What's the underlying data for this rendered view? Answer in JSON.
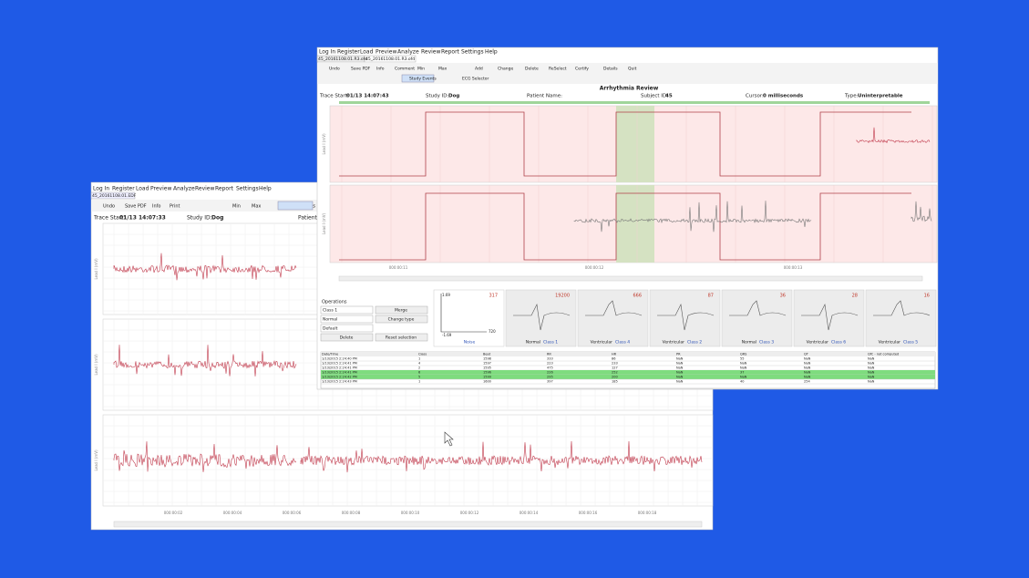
{
  "back_window": {
    "menu": [
      "Log In",
      "Register",
      "Load",
      "Preview",
      "Analyze",
      "Review",
      "Report",
      "Settings",
      "Help"
    ],
    "tab": "45_20161108.01.EDF",
    "toolbar": [
      "Undo",
      "Save PDF",
      "Info",
      "Print",
      "Min",
      "Max",
      "Study Events"
    ],
    "trace_start_label": "Trace Start:",
    "trace_start": "01/13 14:07:33",
    "study_id_label": "Study ID:",
    "study_id": "Dog",
    "patient_label": "Patient N",
    "axis_label": "Lead I (mV)",
    "time_ticks": [
      "000:00:02",
      "000:00:04",
      "000:00:06",
      "000:00:08",
      "000:00:10",
      "000:00:12",
      "000:00:14",
      "000:00:16",
      "000:00:18"
    ]
  },
  "front_window": {
    "menu": [
      "Log In",
      "Register",
      "Load",
      "Preview",
      "Analyze",
      "Review",
      "Report",
      "Settings",
      "Help"
    ],
    "tabs": [
      "45_20161108.01.R3.ofd",
      "45_20161108.01.R3.ofd"
    ],
    "toolbar": [
      "Undo",
      "Save PDF",
      "Info",
      "Comment",
      "Min",
      "Max",
      "Add",
      "Change",
      "Delete",
      "ReSelect",
      "Certify",
      "Details",
      "Quit"
    ],
    "toolbar2": [
      "Study Events",
      "ECG Selector"
    ],
    "title": "Arrhythmia Review",
    "info": [
      {
        "label": "Trace Start:",
        "value": "01/13 14:07:43"
      },
      {
        "label": "Study ID:",
        "value": "Dog"
      },
      {
        "label": "Patient Name:",
        "value": ""
      },
      {
        "label": "Subject ID:",
        "value": "45"
      },
      {
        "label": "Cursor:",
        "value": "0 milliseconds"
      },
      {
        "label": "Type:",
        "value": "Uninterpretable"
      }
    ],
    "axis_label": "Lead I (mV)",
    "time_ticks": [
      "000:00:11",
      "000:00:12",
      "000:00:13"
    ],
    "operations": {
      "title": "Operations",
      "selects": [
        "Class 1",
        "Normal",
        "Default"
      ],
      "buttons": [
        "Merge",
        "Change type",
        "Delete",
        "Reset selection"
      ]
    },
    "noise_axis": [
      "1.69",
      "-1.69",
      "720"
    ],
    "thumbnails": [
      {
        "count": "317",
        "type": "",
        "cls": "Noise"
      },
      {
        "count": "19200",
        "type": "Normal",
        "cls": "Class 1"
      },
      {
        "count": "666",
        "type": "Ventricular",
        "cls": "Class 4"
      },
      {
        "count": "87",
        "type": "Ventricular",
        "cls": "Class 2"
      },
      {
        "count": "36",
        "type": "Normal",
        "cls": "Class 3"
      },
      {
        "count": "28",
        "type": "Ventricular",
        "cls": "Class 6"
      },
      {
        "count": "16",
        "type": "Ventricular",
        "cls": "Class 5"
      }
    ],
    "table": {
      "header": [
        "Date/Time",
        "Class",
        "Beat",
        "RR",
        "HR",
        "PR",
        "QRS",
        "QT",
        "QTc - not computed"
      ],
      "rows": [
        [
          "1/13/2015 2:24:40 PM",
          "1",
          "1598",
          "333",
          "86",
          "NaN",
          "55",
          "NaN",
          "NaN"
        ],
        [
          "1/13/2015 2:24:41 PM",
          "4",
          "1597",
          "223",
          "233",
          "NaN",
          "NaN",
          "NaN",
          "NaN"
        ],
        [
          "1/13/2015 2:24:41 PM",
          "2",
          "1595",
          "475",
          "127",
          "NaN",
          "NaN",
          "NaN",
          "NaN"
        ],
        [
          "1/13/2015 2:24:41 PM",
          "6",
          "1596",
          "226",
          "252",
          "NaN",
          "37",
          "NaN",
          "NaN"
        ],
        [
          "1/13/2015 2:24:42 PM",
          "5",
          "1599",
          "295",
          "200",
          "NaN",
          "NaN",
          "NaN",
          "NaN"
        ],
        [
          "1/13/2015 2:24:43 PM",
          "1",
          "1600",
          "397",
          "185",
          "NaN",
          "40",
          "254",
          "NaN"
        ]
      ]
    }
  }
}
